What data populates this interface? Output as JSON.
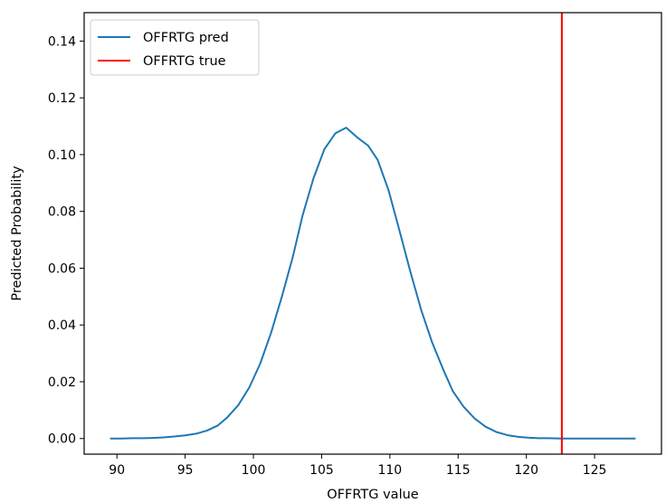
{
  "chart_data": {
    "type": "line",
    "xlabel": "OFFRTG value",
    "ylabel": "Predicted Probability",
    "xlim": [
      87.6,
      129.9
    ],
    "ylim": [
      -0.0055,
      0.15
    ],
    "xticks": [
      90,
      95,
      100,
      105,
      110,
      115,
      120,
      125
    ],
    "yticks": [
      0.0,
      0.02,
      0.04,
      0.06,
      0.08,
      0.1,
      0.12,
      0.14
    ],
    "ytick_labels": [
      "0.00",
      "0.02",
      "0.04",
      "0.06",
      "0.08",
      "0.10",
      "0.12",
      "0.14"
    ],
    "legend_position": "upper left",
    "grid": false,
    "series": [
      {
        "name": "OFFRTG pred",
        "kind": "line",
        "color": "#1f77b4",
        "x": [
          89.5,
          90.3,
          91.1,
          91.9,
          92.6,
          93.4,
          94.2,
          95.0,
          95.8,
          96.6,
          97.4,
          98.1,
          98.9,
          99.7,
          100.5,
          101.3,
          102.1,
          102.9,
          103.6,
          104.4,
          105.2,
          106.0,
          106.8,
          107.6,
          108.4,
          109.1,
          109.9,
          110.7,
          111.5,
          112.3,
          113.1,
          113.9,
          114.6,
          115.4,
          116.2,
          117.0,
          117.8,
          118.6,
          119.4,
          120.1,
          120.9,
          121.7,
          122.5,
          123.3,
          124.1,
          124.9,
          125.6,
          126.4,
          127.2,
          128.0
        ],
        "y": [
          0.0,
          0.0,
          0.0001,
          0.0001,
          0.0002,
          0.0004,
          0.0007,
          0.0011,
          0.0017,
          0.0028,
          0.0046,
          0.0075,
          0.0118,
          0.018,
          0.0264,
          0.0373,
          0.0502,
          0.0642,
          0.0785,
          0.0916,
          0.1019,
          0.1075,
          0.1095,
          0.1061,
          0.1032,
          0.0982,
          0.0875,
          0.0733,
          0.0588,
          0.0452,
          0.0338,
          0.0244,
          0.0168,
          0.0112,
          0.0071,
          0.0042,
          0.0023,
          0.0012,
          0.0006,
          0.0003,
          0.0001,
          0.0001,
          0.0,
          0.0,
          0.0,
          0.0,
          0.0,
          0.0,
          0.0,
          0.0
        ]
      },
      {
        "name": "OFFRTG true",
        "kind": "vline",
        "color": "#ff0000",
        "x": 122.6
      }
    ]
  }
}
